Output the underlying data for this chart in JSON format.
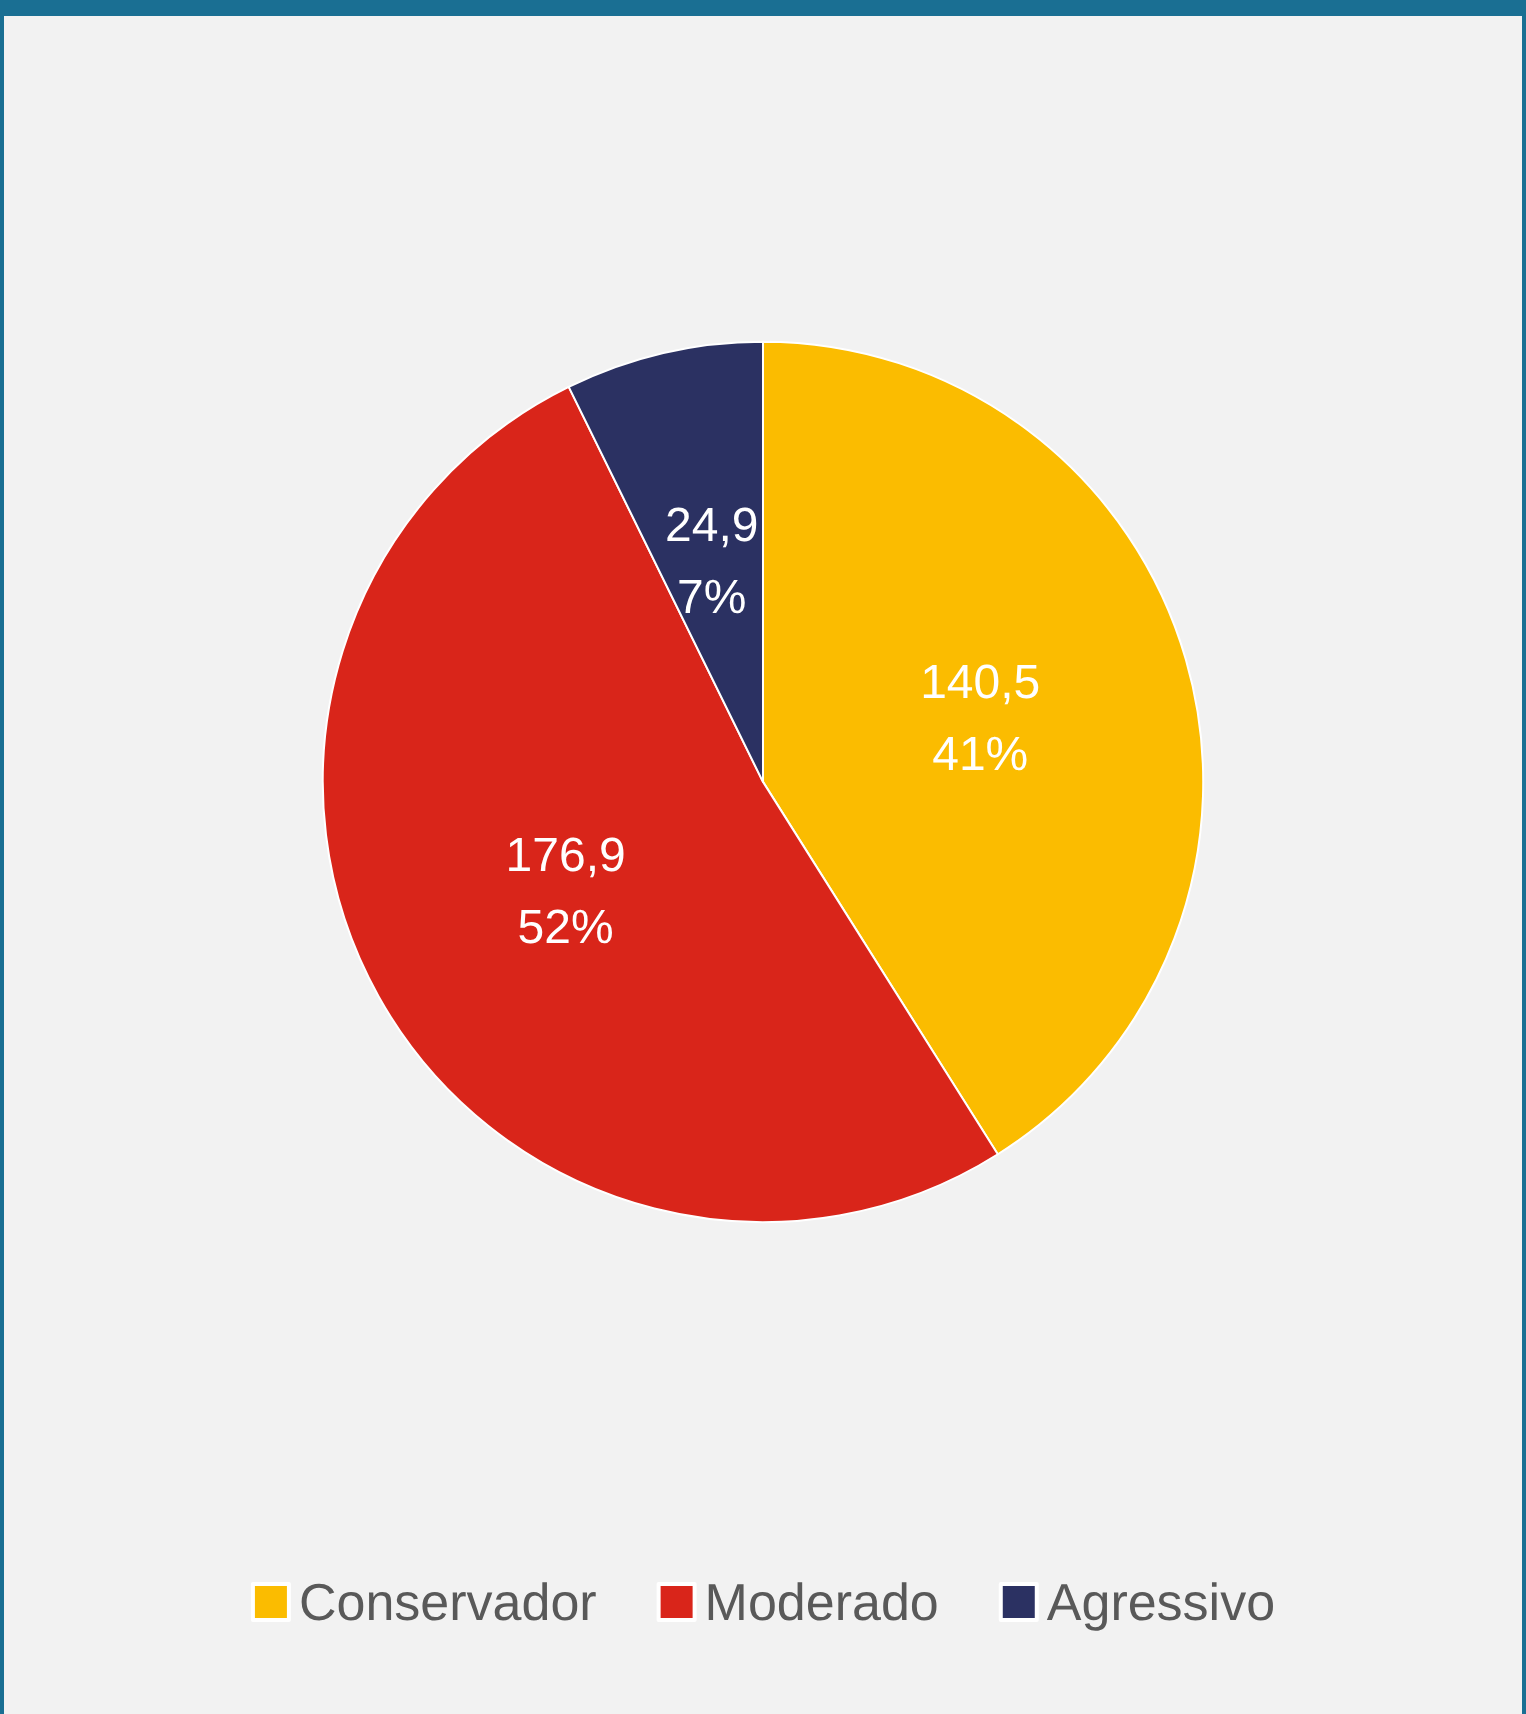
{
  "chart_data": {
    "type": "pie",
    "categories": [
      "Conservador",
      "Moderado",
      "Agressivo"
    ],
    "values": [
      140.5,
      176.9,
      24.9
    ],
    "colors": [
      "#fbbc00",
      "#d9251a",
      "#2b3162"
    ],
    "value_labels": [
      "140,5\n41%",
      "176,9\n52%",
      "24,9\n7%"
    ],
    "legend": "bottom"
  }
}
